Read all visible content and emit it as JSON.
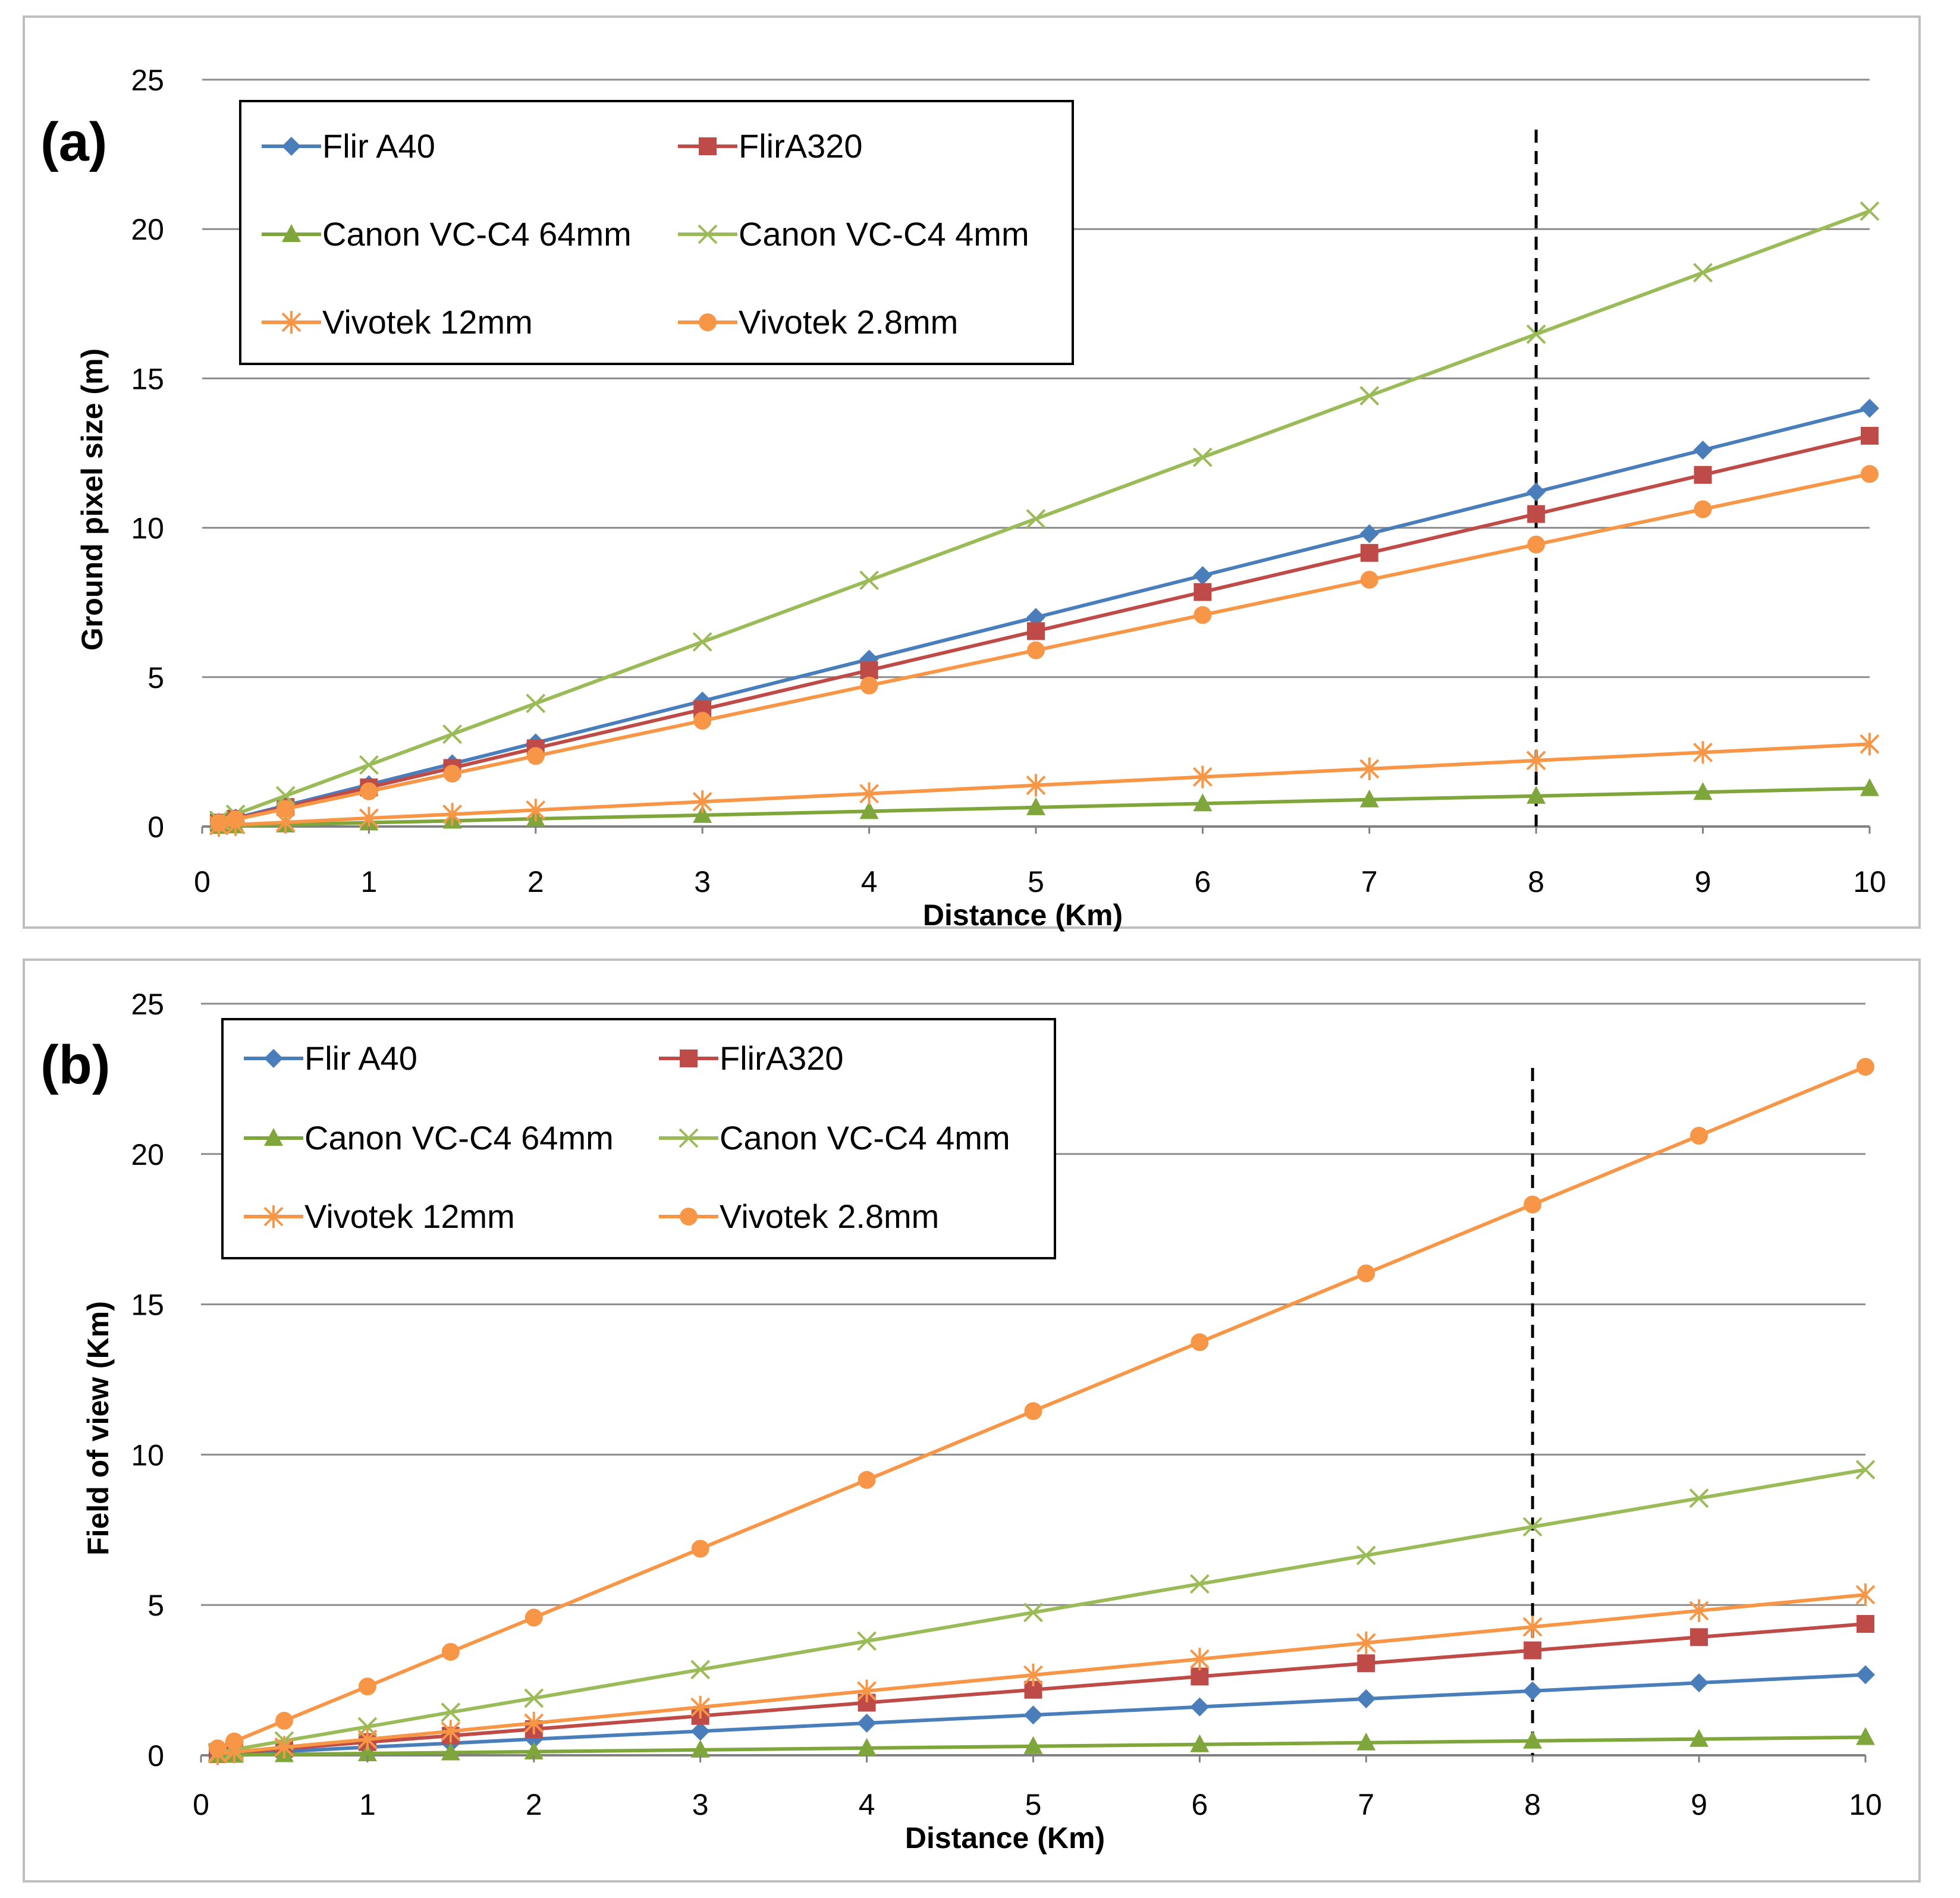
{
  "figure": {
    "colors": {
      "flir_a40": "#4A7EBB",
      "flir_a320": "#BE4B48",
      "canon_64": "#7FA63A",
      "canon_4": "#9BBB59",
      "vivotek_12": "#F79646",
      "vivotek_28": "#F79646",
      "grid": "#8C8C8C",
      "frame": "#BFBFBF",
      "axis": "#808080",
      "marker_line": "#000000"
    }
  },
  "chart_data": [
    {
      "panel_label": "(a)",
      "type": "line",
      "xlabel": "Distance (Km)",
      "ylabel": "Ground pixel size (m)",
      "xlim": [
        0,
        10
      ],
      "ylim": [
        0,
        25
      ],
      "x_ticks": [
        "0",
        "1",
        "2",
        "3",
        "4",
        "5",
        "6",
        "7",
        "8",
        "9",
        "10"
      ],
      "y_ticks": [
        "0",
        "5",
        "10",
        "15",
        "20",
        "25"
      ],
      "vertical_line_x": 8,
      "legend": {
        "entries": [
          "Flir A40",
          "FlirA320",
          "Canon VC-C4 64mm",
          "Canon VC-C4 4mm",
          "Vivotek 12mm",
          "Vivotek 2.8mm"
        ]
      },
      "x": [
        0.1,
        0.2,
        0.5,
        1,
        1.5,
        2,
        3,
        4,
        5,
        6,
        7,
        8,
        9,
        10
      ],
      "series": [
        {
          "name": "Flir A40",
          "marker": "diamond",
          "color_key": "flir_a40",
          "values": [
            0.14,
            0.28,
            0.7,
            1.4,
            2.1,
            2.8,
            4.2,
            5.6,
            7.0,
            8.4,
            9.8,
            11.2,
            12.6,
            14.0
          ]
        },
        {
          "name": "FlirA320",
          "marker": "square",
          "color_key": "flir_a320",
          "values": [
            0.13,
            0.26,
            0.65,
            1.31,
            1.96,
            2.62,
            3.92,
            5.23,
            6.54,
            7.85,
            9.16,
            10.46,
            11.77,
            13.08
          ]
        },
        {
          "name": "Canon VC-C4 64mm",
          "marker": "triangle",
          "color_key": "canon_64",
          "values": [
            0.01,
            0.03,
            0.06,
            0.13,
            0.19,
            0.26,
            0.38,
            0.51,
            0.64,
            0.77,
            0.9,
            1.02,
            1.15,
            1.28
          ]
        },
        {
          "name": "Canon VC-C4 4mm",
          "marker": "x",
          "color_key": "canon_4",
          "values": [
            0.21,
            0.41,
            1.03,
            2.06,
            3.09,
            4.12,
            6.18,
            8.24,
            10.3,
            12.36,
            14.42,
            16.48,
            18.54,
            20.6
          ]
        },
        {
          "name": "Vivotek 12mm",
          "marker": "star",
          "color_key": "vivotek_12",
          "values": [
            0.03,
            0.06,
            0.14,
            0.28,
            0.41,
            0.55,
            0.83,
            1.1,
            1.38,
            1.66,
            1.93,
            2.21,
            2.48,
            2.76
          ]
        },
        {
          "name": "Vivotek 2.8mm",
          "marker": "circle",
          "color_key": "vivotek_28",
          "values": [
            0.12,
            0.24,
            0.59,
            1.18,
            1.77,
            2.36,
            3.54,
            4.72,
            5.9,
            7.08,
            8.26,
            9.44,
            10.62,
            11.8
          ]
        }
      ]
    },
    {
      "panel_label": "(b)",
      "type": "line",
      "xlabel": "Distance (Km)",
      "ylabel": "Field of view (Km)",
      "xlim": [
        0,
        10
      ],
      "ylim": [
        0,
        25
      ],
      "x_ticks": [
        "0",
        "1",
        "2",
        "3",
        "4",
        "5",
        "6",
        "7",
        "8",
        "9",
        "10"
      ],
      "y_ticks": [
        "0",
        "5",
        "10",
        "15",
        "20",
        "25"
      ],
      "vertical_line_x": 8,
      "legend": {
        "entries": [
          "Flir A40",
          "FlirA320",
          "Canon VC-C4 64mm",
          "Canon VC-C4 4mm",
          "Vivotek 12mm",
          "Vivotek 2.8mm"
        ]
      },
      "x": [
        0.1,
        0.2,
        0.5,
        1,
        1.5,
        2,
        3,
        4,
        5,
        6,
        7,
        8,
        9,
        10
      ],
      "series": [
        {
          "name": "Flir A40",
          "marker": "diamond",
          "color_key": "flir_a40",
          "values": [
            0.03,
            0.05,
            0.13,
            0.27,
            0.4,
            0.54,
            0.8,
            1.07,
            1.34,
            1.61,
            1.88,
            2.14,
            2.41,
            2.68
          ]
        },
        {
          "name": "FlirA320",
          "marker": "square",
          "color_key": "flir_a320",
          "values": [
            0.04,
            0.09,
            0.22,
            0.44,
            0.65,
            0.87,
            1.31,
            1.75,
            2.18,
            2.62,
            3.06,
            3.49,
            3.93,
            4.37
          ]
        },
        {
          "name": "Canon VC-C4 64mm",
          "marker": "triangle",
          "color_key": "canon_64",
          "values": [
            0.01,
            0.01,
            0.03,
            0.06,
            0.09,
            0.12,
            0.18,
            0.24,
            0.3,
            0.36,
            0.42,
            0.48,
            0.54,
            0.6
          ]
        },
        {
          "name": "Canon VC-C4 4mm",
          "marker": "x",
          "color_key": "canon_4",
          "values": [
            0.1,
            0.19,
            0.48,
            0.95,
            1.43,
            1.9,
            2.85,
            3.8,
            4.75,
            5.7,
            6.65,
            7.6,
            8.55,
            9.5
          ]
        },
        {
          "name": "Vivotek 12mm",
          "marker": "star",
          "color_key": "vivotek_12",
          "values": [
            0.05,
            0.11,
            0.27,
            0.53,
            0.8,
            1.07,
            1.6,
            2.14,
            2.67,
            3.2,
            3.74,
            4.27,
            4.81,
            5.34
          ]
        },
        {
          "name": "Vivotek 2.8mm",
          "marker": "circle",
          "color_key": "vivotek_28",
          "values": [
            0.23,
            0.46,
            1.15,
            2.29,
            3.44,
            4.58,
            6.87,
            9.16,
            11.45,
            13.74,
            16.03,
            18.32,
            20.61,
            22.9
          ]
        }
      ]
    }
  ]
}
